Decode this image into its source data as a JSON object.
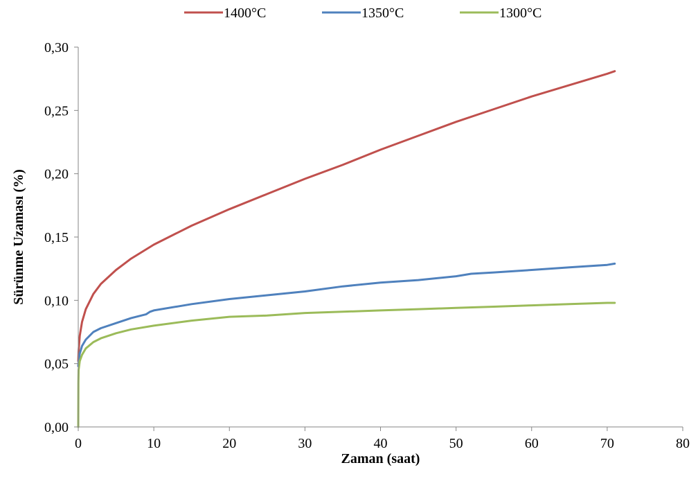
{
  "chart_data": {
    "type": "line",
    "xlabel": "Zaman (saat)",
    "ylabel": "Sürünme Uzaması (%)",
    "xlim": [
      0,
      80
    ],
    "ylim": [
      0,
      0.3
    ],
    "xticks": [
      0,
      10,
      20,
      30,
      40,
      50,
      60,
      70,
      80
    ],
    "xtick_labels": [
      "0",
      "10",
      "20",
      "30",
      "40",
      "50",
      "60",
      "70",
      "80"
    ],
    "yticks": [
      0,
      0.05,
      0.1,
      0.15,
      0.2,
      0.25,
      0.3
    ],
    "ytick_labels": [
      "0,00",
      "0,05",
      "0,10",
      "0,15",
      "0,20",
      "0,25",
      "0,30"
    ],
    "grid": false,
    "legend_position": "top",
    "series": [
      {
        "name": "1400°C",
        "color": "#C0504D",
        "x": [
          0,
          0.05,
          0.2,
          0.5,
          1,
          2,
          3,
          5,
          7,
          10,
          15,
          20,
          25,
          30,
          35,
          40,
          45,
          50,
          55,
          60,
          65,
          70,
          71
        ],
        "y": [
          0.052,
          0.06,
          0.072,
          0.083,
          0.093,
          0.105,
          0.113,
          0.124,
          0.133,
          0.144,
          0.159,
          0.172,
          0.184,
          0.196,
          0.207,
          0.219,
          0.23,
          0.241,
          0.251,
          0.261,
          0.27,
          0.279,
          0.281
        ]
      },
      {
        "name": "1350°C",
        "color": "#4F81BD",
        "x": [
          0,
          0.05,
          0.2,
          0.5,
          1,
          2,
          3,
          5,
          7,
          9,
          9.5,
          10,
          15,
          20,
          25,
          30,
          35,
          40,
          45,
          50,
          52,
          55,
          60,
          65,
          70,
          71
        ],
        "y": [
          0.048,
          0.052,
          0.058,
          0.064,
          0.069,
          0.075,
          0.078,
          0.082,
          0.086,
          0.089,
          0.091,
          0.092,
          0.097,
          0.101,
          0.104,
          0.107,
          0.111,
          0.114,
          0.116,
          0.119,
          0.121,
          0.122,
          0.124,
          0.126,
          0.128,
          0.129
        ]
      },
      {
        "name": "1300°C",
        "color": "#9BBB59",
        "x": [
          0,
          0.02,
          0.05,
          0.2,
          0.5,
          1,
          2,
          3,
          5,
          7,
          10,
          15,
          20,
          25,
          30,
          35,
          40,
          45,
          50,
          55,
          60,
          65,
          70,
          71
        ],
        "y": [
          0.0,
          0.035,
          0.045,
          0.052,
          0.057,
          0.062,
          0.067,
          0.07,
          0.074,
          0.077,
          0.08,
          0.084,
          0.087,
          0.088,
          0.09,
          0.091,
          0.092,
          0.093,
          0.094,
          0.095,
          0.096,
          0.097,
          0.098,
          0.098
        ]
      }
    ]
  }
}
